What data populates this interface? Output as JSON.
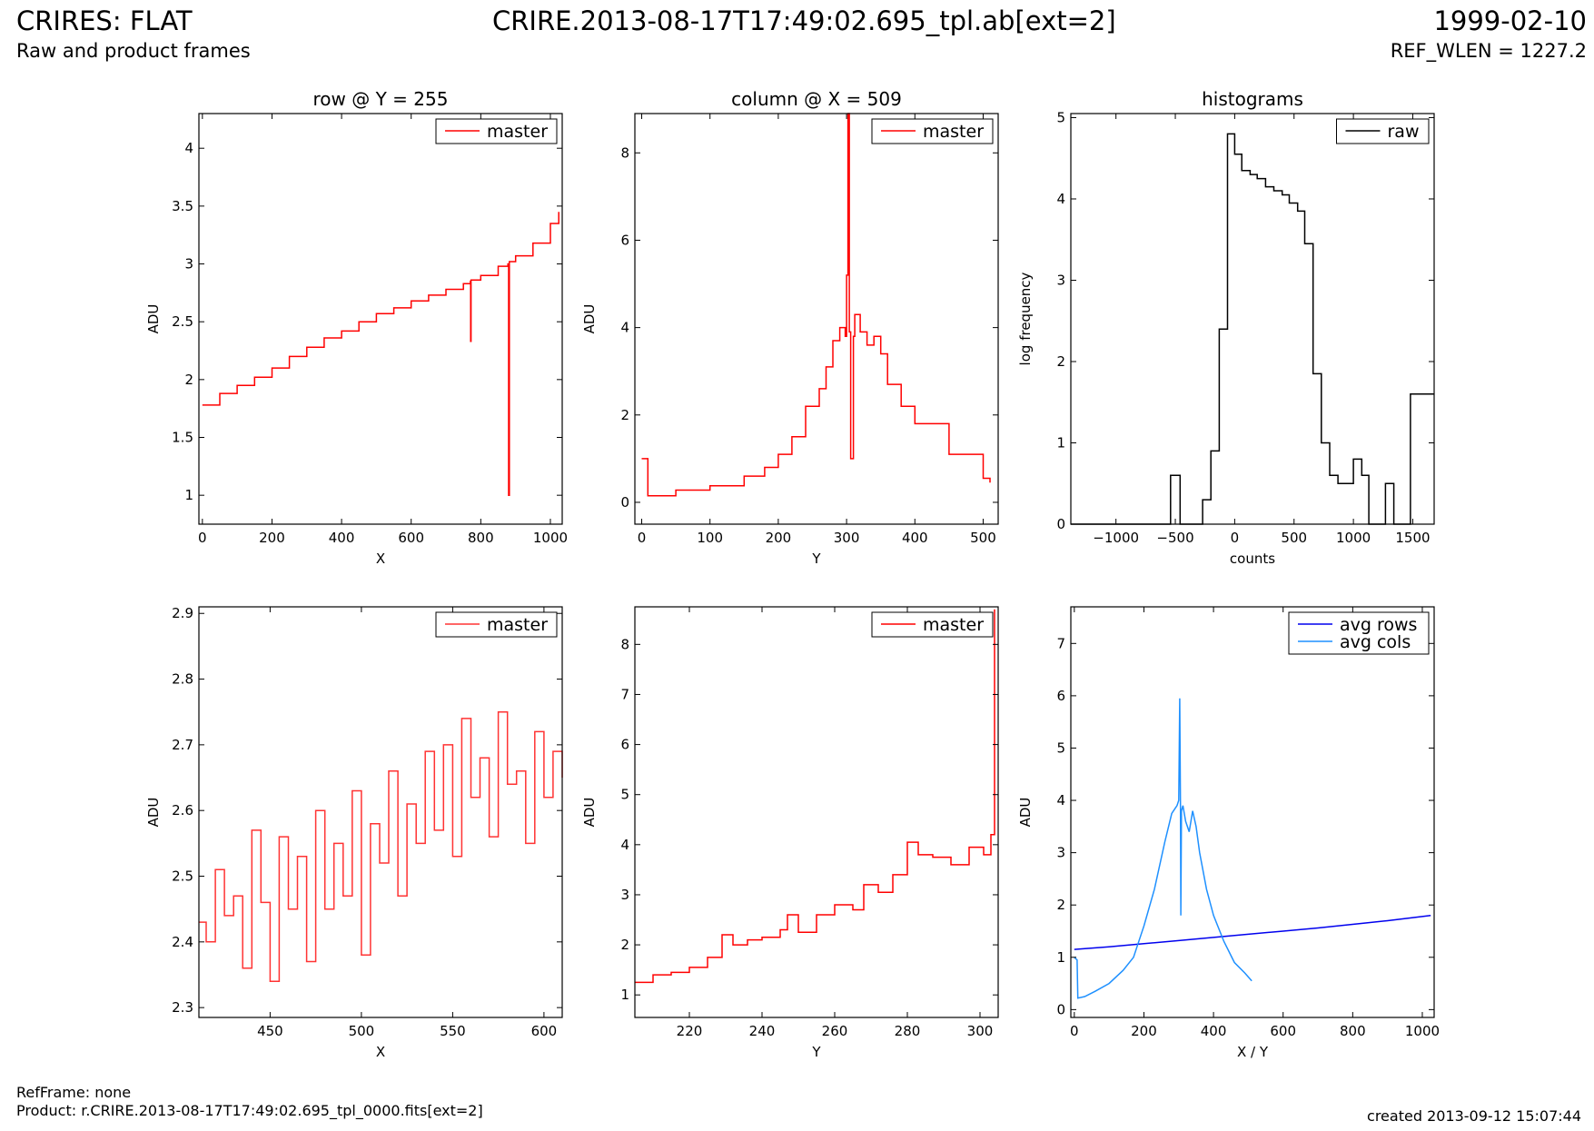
{
  "header": {
    "title_left": "CRIRES: FLAT",
    "subtitle_left": "Raw and product frames",
    "title_center": "CRIRE.2013-08-17T17:49:02.695_tpl.ab[ext=2]",
    "title_right": "1999-02-10",
    "subtitle_right": "REF_WLEN = 1227.2"
  },
  "footer": {
    "refframe": "RefFrame: none",
    "product": "Product: r.CRIRE.2013-08-17T17:49:02.695_tpl_0000.fits[ext=2]",
    "created": "created 2013-09-12 15:07:44"
  },
  "chart_data": [
    {
      "id": "row",
      "type": "line",
      "title": "row @ Y = 255",
      "xlabel": "X",
      "ylabel": "ADU",
      "xlim": [
        -10,
        1034
      ],
      "ylim": [
        0.75,
        4.3
      ],
      "xticks": [
        0,
        200,
        400,
        600,
        800,
        1000
      ],
      "yticks": [
        1.0,
        1.5,
        2.0,
        2.5,
        3.0,
        3.5,
        4.0
      ],
      "legend": "top-right",
      "series": [
        {
          "name": "master",
          "color": "#ff0000",
          "step": true,
          "x": [
            0,
            50,
            100,
            150,
            200,
            250,
            300,
            350,
            400,
            450,
            500,
            550,
            600,
            650,
            700,
            750,
            770,
            771,
            772,
            800,
            850,
            878,
            880,
            882,
            900,
            950,
            1000,
            1024
          ],
          "y": [
            1.78,
            1.88,
            1.95,
            2.02,
            2.1,
            2.2,
            2.28,
            2.36,
            2.42,
            2.5,
            2.57,
            2.62,
            2.68,
            2.73,
            2.78,
            2.83,
            2.85,
            2.33,
            2.86,
            2.9,
            2.98,
            3.0,
            1.0,
            3.02,
            3.07,
            3.18,
            3.35,
            3.45
          ]
        }
      ]
    },
    {
      "id": "column",
      "type": "line",
      "title": "column @ X = 509",
      "xlabel": "Y",
      "ylabel": "ADU",
      "xlim": [
        -10,
        522
      ],
      "ylim": [
        -0.5,
        8.9
      ],
      "xticks": [
        0,
        100,
        200,
        300,
        400,
        500
      ],
      "yticks": [
        0,
        2,
        4,
        6,
        8
      ],
      "legend": "top-right",
      "series": [
        {
          "name": "master",
          "color": "#ff0000",
          "step": true,
          "x": [
            0,
            8,
            9,
            50,
            100,
            150,
            180,
            200,
            220,
            240,
            260,
            270,
            280,
            290,
            298,
            300,
            302,
            304,
            306,
            308,
            310,
            312,
            320,
            330,
            340,
            350,
            360,
            380,
            400,
            450,
            500,
            510
          ],
          "y": [
            1.0,
            1.0,
            0.15,
            0.28,
            0.38,
            0.6,
            0.8,
            1.1,
            1.5,
            2.2,
            2.6,
            3.1,
            3.7,
            4.0,
            3.8,
            5.2,
            8.9,
            3.9,
            1.0,
            1.0,
            3.8,
            4.3,
            3.9,
            3.6,
            3.8,
            3.4,
            2.7,
            2.2,
            1.8,
            1.1,
            0.55,
            0.45
          ]
        }
      ]
    },
    {
      "id": "hist",
      "type": "line",
      "title": "histograms",
      "xlabel": "counts",
      "ylabel": "log frequency",
      "xlim": [
        -1380,
        1680
      ],
      "ylim": [
        0,
        5.05
      ],
      "xticks": [
        -1000,
        -500,
        0,
        500,
        1000,
        1500
      ],
      "yticks": [
        0,
        1,
        2,
        3,
        4,
        5
      ],
      "legend": "top-right",
      "series": [
        {
          "name": "raw",
          "color": "#000000",
          "step": true,
          "x": [
            -1380,
            -540,
            -460,
            -270,
            -200,
            -130,
            -60,
            0,
            60,
            130,
            190,
            260,
            330,
            400,
            460,
            530,
            590,
            660,
            730,
            800,
            870,
            930,
            1000,
            1070,
            1130,
            1200,
            1270,
            1340,
            1410,
            1480,
            1600,
            1680
          ],
          "y": [
            0,
            0.6,
            0,
            0.3,
            0.9,
            2.4,
            4.8,
            4.55,
            4.35,
            4.3,
            4.25,
            4.15,
            4.1,
            4.05,
            3.95,
            3.85,
            3.45,
            1.85,
            1.0,
            0.6,
            0.5,
            0.5,
            0.8,
            0.6,
            0.0,
            0.0,
            0.5,
            0.0,
            0.0,
            1.6,
            1.6,
            1.6
          ]
        }
      ]
    },
    {
      "id": "row_zoom",
      "type": "line",
      "xlabel": "X",
      "ylabel": "ADU",
      "xlim": [
        411,
        610
      ],
      "ylim": [
        2.285,
        2.91
      ],
      "xticks": [
        450,
        500,
        550,
        600
      ],
      "yticks": [
        2.3,
        2.4,
        2.5,
        2.6,
        2.7,
        2.8,
        2.9
      ],
      "legend": "top-right",
      "series": [
        {
          "name": "master",
          "color": "#ff3333",
          "step": true,
          "x": [
            411,
            415,
            420,
            425,
            430,
            435,
            440,
            445,
            450,
            455,
            460,
            465,
            470,
            475,
            480,
            485,
            490,
            495,
            500,
            505,
            510,
            515,
            520,
            525,
            530,
            535,
            540,
            545,
            550,
            555,
            560,
            565,
            570,
            575,
            580,
            585,
            590,
            595,
            600,
            605,
            610
          ],
          "y": [
            2.43,
            2.4,
            2.51,
            2.44,
            2.47,
            2.36,
            2.57,
            2.46,
            2.34,
            2.56,
            2.45,
            2.53,
            2.37,
            2.6,
            2.45,
            2.55,
            2.47,
            2.63,
            2.38,
            2.58,
            2.52,
            2.66,
            2.47,
            2.61,
            2.55,
            2.69,
            2.57,
            2.7,
            2.53,
            2.74,
            2.62,
            2.68,
            2.56,
            2.75,
            2.64,
            2.66,
            2.55,
            2.72,
            2.62,
            2.69,
            2.65
          ]
        }
      ]
    },
    {
      "id": "column_zoom",
      "type": "line",
      "xlabel": "Y",
      "ylabel": "ADU",
      "xlim": [
        205,
        305
      ],
      "ylim": [
        0.55,
        8.75
      ],
      "xticks": [
        220,
        240,
        260,
        280,
        300
      ],
      "yticks": [
        1,
        2,
        3,
        4,
        5,
        6,
        7,
        8
      ],
      "legend": "top-right",
      "series": [
        {
          "name": "master",
          "color": "#ff0000",
          "step": true,
          "x": [
            205,
            210,
            215,
            220,
            225,
            229,
            232,
            236,
            240,
            245,
            247,
            250,
            255,
            260,
            265,
            268,
            272,
            276,
            280,
            283,
            287,
            292,
            297,
            301,
            303,
            304
          ],
          "y": [
            1.25,
            1.4,
            1.45,
            1.55,
            1.75,
            2.2,
            2.0,
            2.1,
            2.15,
            2.3,
            2.6,
            2.25,
            2.6,
            2.8,
            2.7,
            3.2,
            3.05,
            3.4,
            4.05,
            3.8,
            3.75,
            3.6,
            3.95,
            3.8,
            4.2,
            8.7
          ]
        }
      ]
    },
    {
      "id": "avg",
      "type": "line",
      "xlabel": "X / Y",
      "ylabel": "ADU",
      "xlim": [
        -10,
        1034
      ],
      "ylim": [
        -0.15,
        7.7
      ],
      "xticks": [
        0,
        200,
        400,
        600,
        800,
        1000
      ],
      "yticks": [
        0,
        1,
        2,
        3,
        4,
        5,
        6,
        7
      ],
      "legend": "top-right",
      "series": [
        {
          "name": "avg rows",
          "color": "#0000ee",
          "x": [
            0,
            100,
            200,
            300,
            400,
            500,
            600,
            700,
            800,
            900,
            1024
          ],
          "y": [
            1.15,
            1.2,
            1.26,
            1.32,
            1.38,
            1.44,
            1.5,
            1.56,
            1.63,
            1.7,
            1.8
          ]
        },
        {
          "name": "avg cols",
          "color": "#1e90ff",
          "x": [
            0,
            8,
            10,
            30,
            60,
            100,
            140,
            170,
            200,
            230,
            260,
            280,
            295,
            300,
            303,
            305,
            306,
            308,
            312,
            320,
            330,
            340,
            350,
            360,
            380,
            400,
            430,
            460,
            490,
            510
          ],
          "y": [
            1.0,
            0.95,
            0.22,
            0.25,
            0.35,
            0.5,
            0.75,
            1.0,
            1.6,
            2.3,
            3.2,
            3.75,
            3.9,
            4.0,
            5.95,
            3.9,
            1.8,
            3.8,
            3.9,
            3.6,
            3.4,
            3.8,
            3.5,
            3.0,
            2.3,
            1.8,
            1.3,
            0.9,
            0.7,
            0.55
          ]
        }
      ]
    }
  ]
}
